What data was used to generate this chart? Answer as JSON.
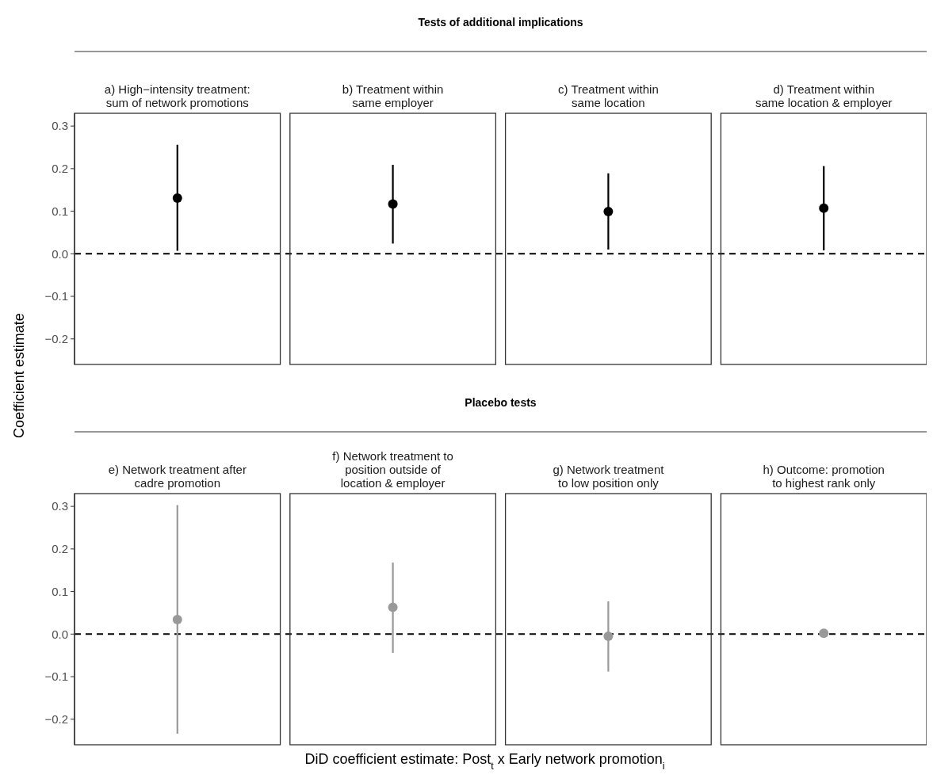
{
  "chart_data": [
    {
      "type": "scatter",
      "title": "Tests of additional implications",
      "ylabel": "Coefficient estimate",
      "categories": [
        "a) High−intensity treatment:\nsum of network promotions",
        "b) Treatment within\nsame employer",
        "c) Treatment within\nsame location",
        "d) Treatment within\nsame location & employer"
      ],
      "values": [
        0.131,
        0.117,
        0.099,
        0.107
      ],
      "errors": [
        [
          0.007,
          0.256
        ],
        [
          0.024,
          0.209
        ],
        [
          0.01,
          0.189
        ],
        [
          0.008,
          0.206
        ]
      ],
      "color": "#000000",
      "marker": "circle",
      "ylim": [
        -0.26,
        0.33
      ],
      "yticks": [
        {
          "value": -0.2,
          "label": "−0.2"
        },
        {
          "value": -0.1,
          "label": "−0.1"
        },
        {
          "value": 0,
          "label": "0.0"
        },
        0.1,
        0.2,
        0.3
      ],
      "ref_lines": [
        {
          "axis": "y",
          "value": 0,
          "color": "#000000",
          "line_style": "dashed"
        }
      ]
    },
    {
      "type": "scatter",
      "title": "Placebo tests",
      "xlabel": "DiD coefficient estimate: Post$_{t}$ x Early network promotion$_{i}$",
      "categories": [
        "e) Network treatment after\ncadre promotion",
        "f) Network treatment to\nposition outside of\nlocation & employer",
        "g) Network treatment\nto low position only",
        "h) Outcome: promotion\nto highest rank only"
      ],
      "values": [
        0.034,
        0.063,
        -0.005,
        0.002
      ],
      "errors": [
        [
          -0.234,
          0.303
        ],
        [
          -0.044,
          0.168
        ],
        [
          -0.088,
          0.077
        ],
        null
      ],
      "color": "#999999",
      "marker": "circle",
      "ylim": [
        -0.26,
        0.33
      ],
      "yticks": [
        {
          "value": -0.2,
          "label": "−0.2"
        },
        {
          "value": -0.1,
          "label": "−0.1"
        },
        {
          "value": 0,
          "label": "0.0"
        },
        0.1,
        0.2,
        0.3
      ],
      "ref_lines": [
        {
          "axis": "y",
          "value": 0,
          "color": "#000000",
          "line_style": "dashed"
        }
      ]
    }
  ]
}
